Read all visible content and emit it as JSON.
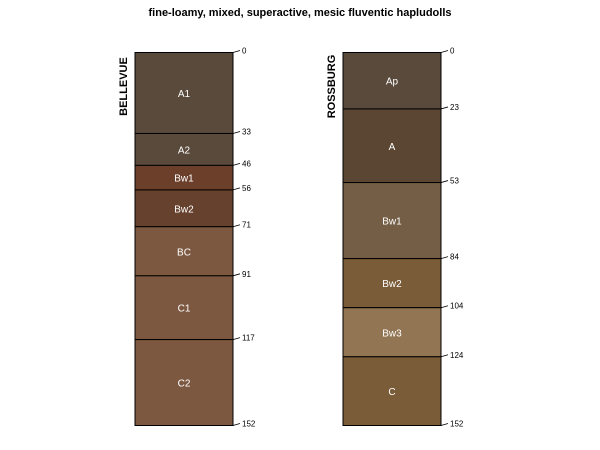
{
  "chart_data": {
    "type": "soil-profile",
    "title": "fine-loamy, mixed, superactive, mesic fluventic hapludolls",
    "depth_unit": "cm",
    "max_depth": 152,
    "profiles": [
      {
        "name": "BELLEVUE",
        "horizons": [
          {
            "name": "A1",
            "top": 0,
            "bottom": 33,
            "color": "#594a3b"
          },
          {
            "name": "A2",
            "top": 33,
            "bottom": 46,
            "color": "#594a3b"
          },
          {
            "name": "Bw1",
            "top": 46,
            "bottom": 56,
            "color": "#6b3f2a"
          },
          {
            "name": "Bw2",
            "top": 56,
            "bottom": 71,
            "color": "#66412d"
          },
          {
            "name": "BC",
            "top": 71,
            "bottom": 91,
            "color": "#7d5841"
          },
          {
            "name": "C1",
            "top": 91,
            "bottom": 117,
            "color": "#7d5841"
          },
          {
            "name": "C2",
            "top": 117,
            "bottom": 152,
            "color": "#7d5841"
          }
        ],
        "depth_labels": [
          "0",
          "33",
          "46",
          "56",
          "71",
          "91",
          "117",
          "152"
        ]
      },
      {
        "name": "ROSSBURG",
        "horizons": [
          {
            "name": "Ap",
            "top": 0,
            "bottom": 23,
            "color": "#594a3b"
          },
          {
            "name": "A",
            "top": 23,
            "bottom": 53,
            "color": "#5a4632"
          },
          {
            "name": "Bw1",
            "top": 53,
            "bottom": 84,
            "color": "#745e45"
          },
          {
            "name": "Bw2",
            "top": 84,
            "bottom": 104,
            "color": "#7a5c38"
          },
          {
            "name": "Bw3",
            "top": 104,
            "bottom": 124,
            "color": "#927553"
          },
          {
            "name": "C",
            "top": 124,
            "bottom": 152,
            "color": "#7a5c38"
          }
        ],
        "depth_labels": [
          "0",
          "23",
          "53",
          "84",
          "104",
          "124",
          "152"
        ]
      }
    ]
  }
}
